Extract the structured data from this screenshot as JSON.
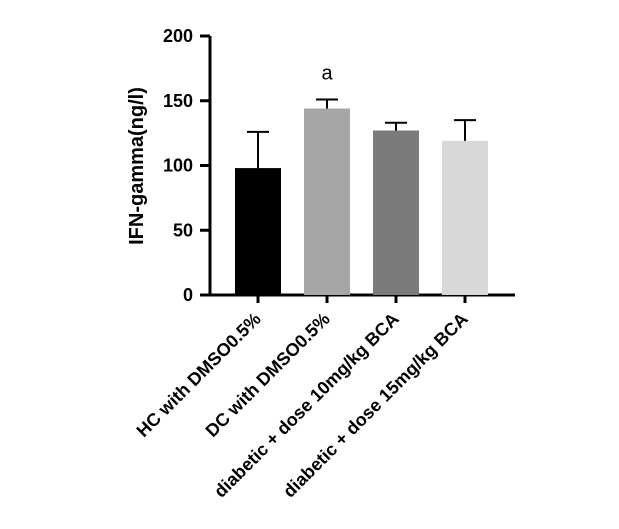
{
  "chart_data": {
    "type": "bar",
    "title": "",
    "xlabel": "",
    "ylabel": "IFN-gamma(ng/l)",
    "ylim": [
      0,
      200
    ],
    "y_ticks": [
      "0",
      "50",
      "100",
      "150",
      "200"
    ],
    "categories": [
      "HC with DMSO0.5%",
      "DC with DMSO0.5%",
      "diabetic + dose 10mg/kg BCA",
      "diabetic + dose 15mg/kg BCA"
    ],
    "values": [
      98,
      144,
      127,
      119
    ],
    "error_upper": [
      126,
      151,
      133,
      135
    ],
    "bar_colors": [
      "#000000",
      "#a6a6a8",
      "#7b7b7b",
      "#d8d8d8"
    ],
    "annotations": [
      {
        "category_index": 1,
        "text": "a"
      }
    ],
    "grid": false,
    "legend": "none"
  }
}
